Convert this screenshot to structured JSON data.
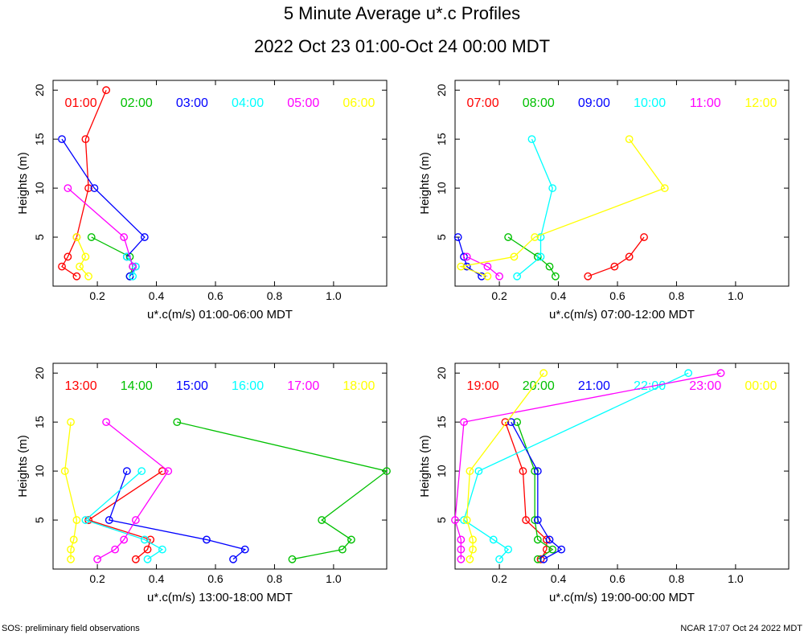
{
  "title": "5 Minute Average u*.c Profiles",
  "subtitle": "2022 Oct 23 01:00-Oct 24 00:00 MDT",
  "footer_left": "SOS: preliminary field observations",
  "footer_right": "NCAR 17:07 Oct 24 2022 MDT",
  "chart_data": [
    {
      "type": "line",
      "xlabel": "u*.c(m/s) 01:00-06:00 MDT",
      "ylabel": "Heights (m)",
      "xlim": [
        0.05,
        1.18
      ],
      "ylim": [
        0,
        21
      ],
      "xticks": [
        0.2,
        0.4,
        0.6,
        0.8,
        1.0
      ],
      "xtick_labels": [
        "0.2",
        "0.4",
        "0.6",
        "0.8",
        "1.0"
      ],
      "yticks": [
        5,
        10,
        15,
        20
      ],
      "ytick_labels": [
        "5",
        "10",
        "15",
        "20"
      ],
      "series": [
        {
          "name": "01:00",
          "color": "#ff0000",
          "points": [
            [
              0.13,
              1
            ],
            [
              0.08,
              2
            ],
            [
              0.1,
              3
            ],
            [
              0.13,
              5
            ],
            [
              0.17,
              10
            ],
            [
              0.16,
              15
            ],
            [
              0.23,
              20
            ]
          ]
        },
        {
          "name": "02:00",
          "color": "#00c000",
          "points": [
            [
              0.31,
              1
            ],
            [
              0.32,
              2
            ],
            [
              0.31,
              3
            ],
            [
              0.18,
              5
            ]
          ]
        },
        {
          "name": "03:00",
          "color": "#0000ff",
          "points": [
            [
              0.31,
              1
            ],
            [
              0.33,
              2
            ],
            [
              0.3,
              3
            ],
            [
              0.36,
              5
            ],
            [
              0.19,
              10
            ],
            [
              0.08,
              15
            ]
          ]
        },
        {
          "name": "04:00",
          "color": "#00ffff",
          "points": [
            [
              0.32,
              1
            ],
            [
              0.33,
              2
            ],
            [
              0.3,
              3
            ]
          ]
        },
        {
          "name": "05:00",
          "color": "#ff00ff",
          "points": [
            [
              0.32,
              2
            ],
            [
              0.29,
              5
            ],
            [
              0.1,
              10
            ]
          ]
        },
        {
          "name": "06:00",
          "color": "#ffff00",
          "points": [
            [
              0.17,
              1
            ],
            [
              0.14,
              2
            ],
            [
              0.16,
              3
            ],
            [
              0.13,
              5
            ]
          ]
        }
      ]
    },
    {
      "type": "line",
      "xlabel": "u*.c(m/s) 07:00-12:00 MDT",
      "ylabel": "Heights (m)",
      "xlim": [
        0.05,
        1.18
      ],
      "ylim": [
        0,
        21
      ],
      "xticks": [
        0.2,
        0.4,
        0.6,
        0.8,
        1.0
      ],
      "xtick_labels": [
        "0.2",
        "0.4",
        "0.6",
        "0.8",
        "1.0"
      ],
      "yticks": [
        5,
        10,
        15,
        20
      ],
      "ytick_labels": [
        "5",
        "10",
        "15",
        "20"
      ],
      "series": [
        {
          "name": "07:00",
          "color": "#ff0000",
          "points": [
            [
              0.5,
              1
            ],
            [
              0.59,
              2
            ],
            [
              0.64,
              3
            ],
            [
              0.69,
              5
            ]
          ]
        },
        {
          "name": "08:00",
          "color": "#00c000",
          "points": [
            [
              0.39,
              1
            ],
            [
              0.37,
              2
            ],
            [
              0.33,
              3
            ],
            [
              0.23,
              5
            ]
          ]
        },
        {
          "name": "09:00",
          "color": "#0000ff",
          "points": [
            [
              0.14,
              1
            ],
            [
              0.09,
              2
            ],
            [
              0.08,
              3
            ],
            [
              0.06,
              5
            ]
          ]
        },
        {
          "name": "10:00",
          "color": "#00ffff",
          "points": [
            [
              0.26,
              1
            ],
            [
              0.34,
              3
            ],
            [
              0.34,
              5
            ],
            [
              0.38,
              10
            ],
            [
              0.31,
              15
            ]
          ]
        },
        {
          "name": "11:00",
          "color": "#ff00ff",
          "points": [
            [
              0.2,
              1
            ],
            [
              0.16,
              2
            ],
            [
              0.09,
              3
            ]
          ]
        },
        {
          "name": "12:00",
          "color": "#ffff00",
          "points": [
            [
              0.16,
              1
            ],
            [
              0.07,
              2
            ],
            [
              0.25,
              3
            ],
            [
              0.32,
              5
            ],
            [
              0.76,
              10
            ],
            [
              0.64,
              15
            ]
          ]
        }
      ]
    },
    {
      "type": "line",
      "xlabel": "u*.c(m/s) 13:00-18:00 MDT",
      "ylabel": "Heights (m)",
      "xlim": [
        0.05,
        1.18
      ],
      "ylim": [
        0,
        21
      ],
      "xticks": [
        0.2,
        0.4,
        0.6,
        0.8,
        1.0
      ],
      "xtick_labels": [
        "0.2",
        "0.4",
        "0.6",
        "0.8",
        "1.0"
      ],
      "yticks": [
        5,
        10,
        15,
        20
      ],
      "ytick_labels": [
        "5",
        "10",
        "15",
        "20"
      ],
      "series": [
        {
          "name": "13:00",
          "color": "#ff0000",
          "points": [
            [
              0.33,
              1
            ],
            [
              0.37,
              2
            ],
            [
              0.38,
              3
            ],
            [
              0.17,
              5
            ],
            [
              0.42,
              10
            ]
          ]
        },
        {
          "name": "14:00",
          "color": "#00c000",
          "points": [
            [
              0.86,
              1
            ],
            [
              1.03,
              2
            ],
            [
              1.06,
              3
            ],
            [
              0.96,
              5
            ],
            [
              1.18,
              10
            ],
            [
              0.47,
              15
            ]
          ]
        },
        {
          "name": "15:00",
          "color": "#0000ff",
          "points": [
            [
              0.66,
              1
            ],
            [
              0.7,
              2
            ],
            [
              0.57,
              3
            ],
            [
              0.24,
              5
            ],
            [
              0.3,
              10
            ]
          ]
        },
        {
          "name": "16:00",
          "color": "#00ffff",
          "points": [
            [
              0.37,
              1
            ],
            [
              0.42,
              2
            ],
            [
              0.36,
              3
            ],
            [
              0.16,
              5
            ],
            [
              0.35,
              10
            ]
          ]
        },
        {
          "name": "17:00",
          "color": "#ff00ff",
          "points": [
            [
              0.2,
              1
            ],
            [
              0.26,
              2
            ],
            [
              0.29,
              3
            ],
            [
              0.33,
              5
            ],
            [
              0.44,
              10
            ],
            [
              0.23,
              15
            ]
          ]
        },
        {
          "name": "18:00",
          "color": "#ffff00",
          "points": [
            [
              0.11,
              1
            ],
            [
              0.11,
              2
            ],
            [
              0.12,
              3
            ],
            [
              0.13,
              5
            ],
            [
              0.09,
              10
            ],
            [
              0.11,
              15
            ]
          ]
        }
      ]
    },
    {
      "type": "line",
      "xlabel": "u*.c(m/s) 19:00-00:00 MDT",
      "ylabel": "Heights (m)",
      "xlim": [
        0.05,
        1.18
      ],
      "ylim": [
        0,
        21
      ],
      "xticks": [
        0.2,
        0.4,
        0.6,
        0.8,
        1.0
      ],
      "xtick_labels": [
        "0.2",
        "0.4",
        "0.6",
        "0.8",
        "1.0"
      ],
      "yticks": [
        5,
        10,
        15,
        20
      ],
      "ytick_labels": [
        "5",
        "10",
        "15",
        "20"
      ],
      "series": [
        {
          "name": "19:00",
          "color": "#ff0000",
          "points": [
            [
              0.34,
              1
            ],
            [
              0.36,
              2
            ],
            [
              0.36,
              3
            ],
            [
              0.29,
              5
            ],
            [
              0.28,
              10
            ],
            [
              0.22,
              15
            ]
          ]
        },
        {
          "name": "20:00",
          "color": "#00c000",
          "points": [
            [
              0.33,
              1
            ],
            [
              0.38,
              2
            ],
            [
              0.33,
              3
            ],
            [
              0.32,
              5
            ],
            [
              0.32,
              10
            ],
            [
              0.26,
              15
            ]
          ]
        },
        {
          "name": "21:00",
          "color": "#0000ff",
          "points": [
            [
              0.35,
              1
            ],
            [
              0.41,
              2
            ],
            [
              0.37,
              3
            ],
            [
              0.33,
              5
            ],
            [
              0.33,
              10
            ],
            [
              0.24,
              15
            ]
          ]
        },
        {
          "name": "22:00",
          "color": "#00ffff",
          "points": [
            [
              0.2,
              1
            ],
            [
              0.23,
              2
            ],
            [
              0.18,
              3
            ],
            [
              0.08,
              5
            ],
            [
              0.13,
              10
            ],
            [
              0.84,
              20
            ]
          ]
        },
        {
          "name": "23:00",
          "color": "#ff00ff",
          "points": [
            [
              0.07,
              1
            ],
            [
              0.07,
              2
            ],
            [
              0.07,
              3
            ],
            [
              0.05,
              5
            ],
            [
              0.08,
              15
            ],
            [
              0.95,
              20
            ]
          ]
        },
        {
          "name": "00:00",
          "color": "#ffff00",
          "points": [
            [
              0.1,
              1
            ],
            [
              0.11,
              2
            ],
            [
              0.11,
              3
            ],
            [
              0.09,
              5
            ],
            [
              0.1,
              10
            ],
            [
              0.35,
              20
            ]
          ]
        }
      ]
    }
  ]
}
